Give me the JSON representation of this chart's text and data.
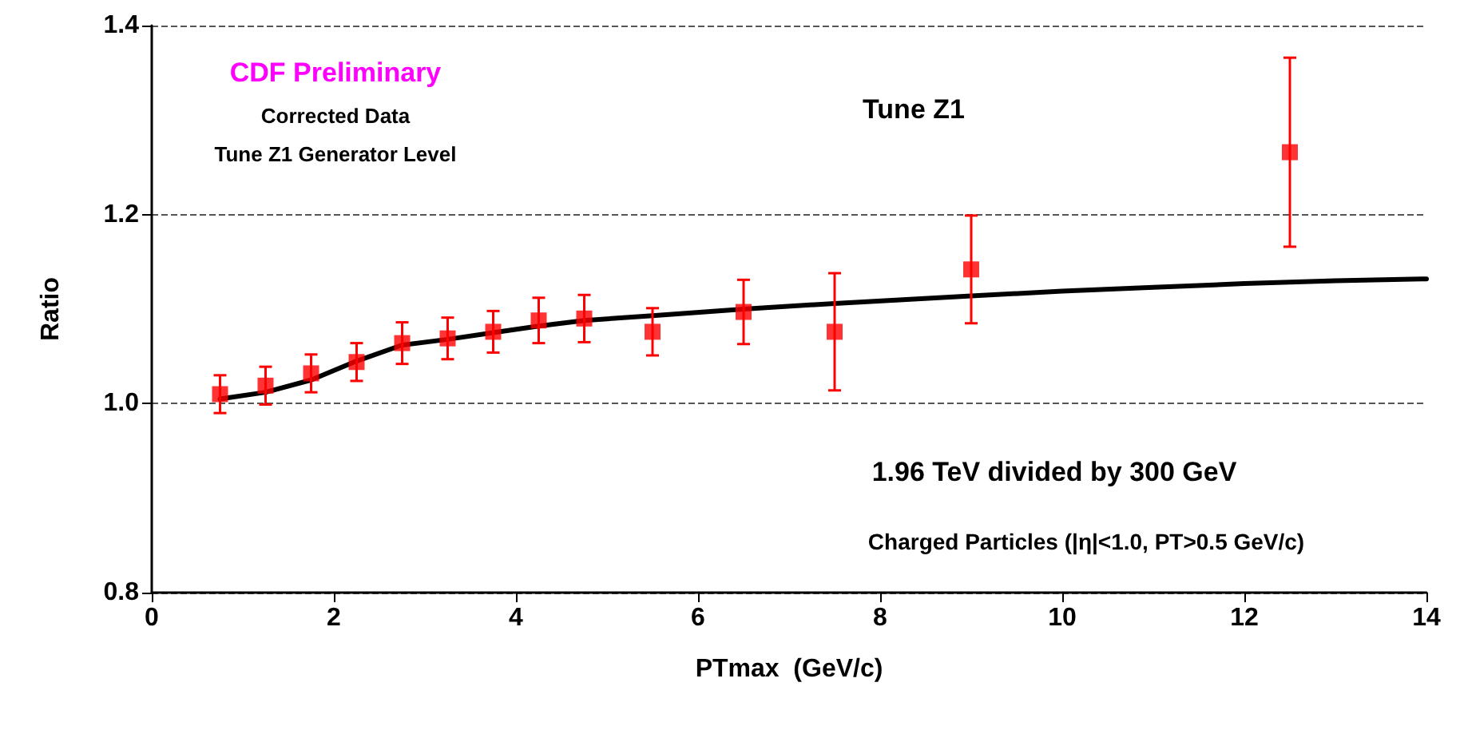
{
  "chart_data": {
    "type": "scatter",
    "xlabel": "PTmax  (GeV/c)",
    "ylabel": "Ratio",
    "annotations": [
      "CDF Preliminary",
      "Corrected Data",
      "Tune Z1 Generator Level",
      "Tune Z1",
      "1.96 TeV divided by 300 GeV",
      "Charged Particles (|η|<1.0, PT>0.5 GeV/c)"
    ],
    "series": [
      {
        "color": "#ff0000",
        "marker": "square",
        "x": [
          0.75,
          1.25,
          1.75,
          2.25,
          2.75,
          3.25,
          3.75,
          4.25,
          4.75,
          5.5,
          6.5,
          7.5,
          9,
          12.5
        ],
        "values": [
          1.01,
          1.019,
          1.032,
          1.044,
          1.064,
          1.069,
          1.076,
          1.088,
          1.09,
          1.076,
          1.097,
          1.076,
          1.142,
          1.266
        ],
        "errors": [
          0.02,
          0.02,
          0.02,
          0.02,
          0.022,
          0.022,
          0.022,
          0.024,
          0.025,
          0.025,
          0.034,
          0.062,
          0.057,
          0.1
        ]
      },
      {
        "type": "line",
        "color": "#000000",
        "marker": "none",
        "line_style": "solid",
        "x": [
          0.75,
          1.25,
          1.75,
          2.25,
          2.75,
          3.25,
          3.75,
          4.25,
          4.75,
          5.5,
          6.5,
          7.5,
          9,
          10,
          11,
          12,
          13,
          14
        ],
        "values": [
          1.005,
          1.012,
          1.025,
          1.045,
          1.062,
          1.068,
          1.075,
          1.082,
          1.088,
          1.093,
          1.1,
          1.106,
          1.114,
          1.119,
          1.123,
          1.127,
          1.13,
          1.132
        ]
      }
    ],
    "xlim": [
      0,
      14
    ],
    "xticks": [
      0,
      2,
      4,
      6,
      8,
      10,
      12,
      14
    ],
    "ylim": [
      0.8,
      1.4
    ],
    "yticks": [
      {
        "value": 0.8,
        "label": "0.8"
      },
      {
        "value": 1,
        "label": "1.0"
      },
      {
        "value": 1.2,
        "label": "1.2"
      },
      {
        "value": 1.4,
        "label": "1.4"
      }
    ],
    "grid": "y"
  }
}
